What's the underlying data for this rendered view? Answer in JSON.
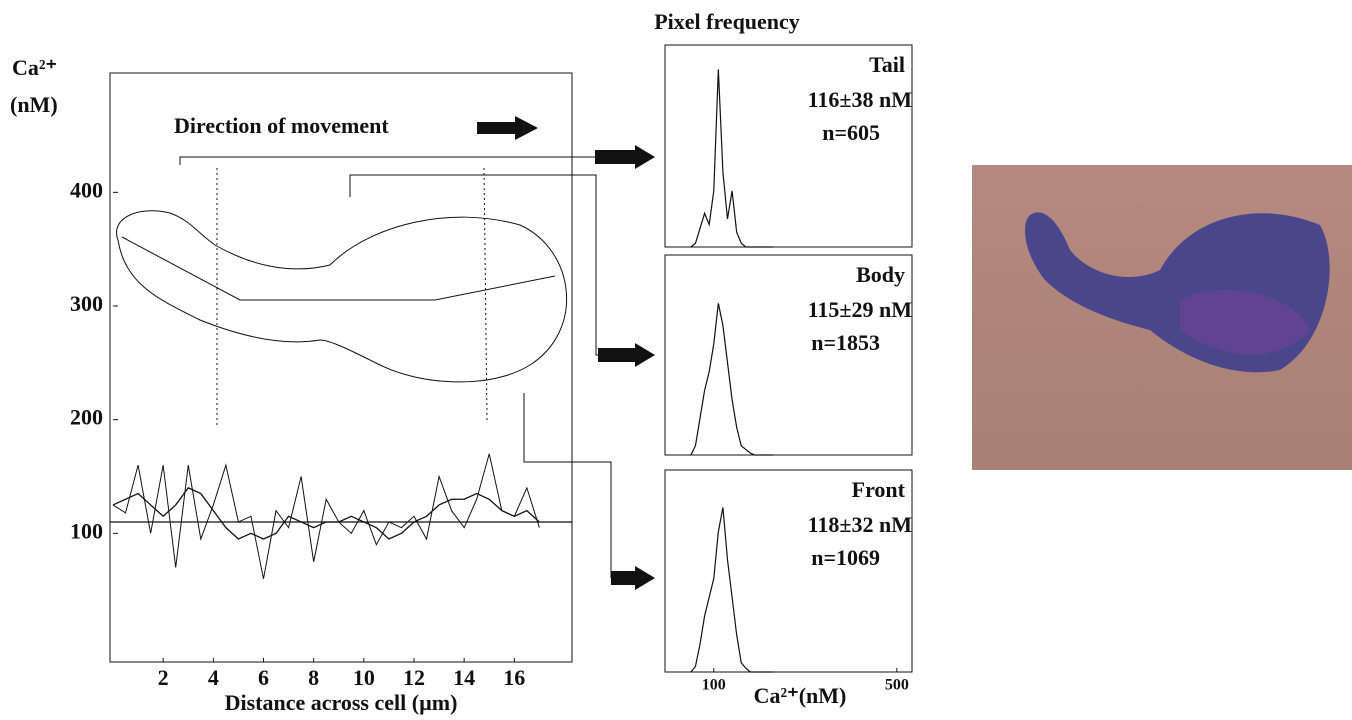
{
  "chart_data": [
    {
      "type": "line",
      "annotation": "Direction of movement",
      "y_label": "Ca²⁺",
      "y_unit": "(nM)",
      "x_label": "Distance across cell (µm)",
      "x": [
        0,
        0.5,
        1,
        1.5,
        2,
        2.5,
        3,
        3.5,
        4,
        4.5,
        5,
        5.5,
        6,
        6.5,
        7,
        7.5,
        8,
        8.5,
        9,
        9.5,
        10,
        10.5,
        11,
        11.5,
        12,
        12.5,
        13,
        13.5,
        14,
        14.5,
        15,
        15.5,
        16,
        16.5,
        17
      ],
      "series": [
        {
          "color": "#111111",
          "values": [
            125,
            118,
            160,
            100,
            160,
            70,
            160,
            95,
            125,
            160,
            110,
            115,
            60,
            120,
            105,
            150,
            75,
            130,
            110,
            100,
            120,
            90,
            110,
            105,
            115,
            95,
            150,
            120,
            105,
            130,
            170,
            120,
            115,
            140,
            105
          ]
        },
        {
          "color": "#111111",
          "values": [
            125,
            130,
            135,
            125,
            115,
            125,
            140,
            135,
            120,
            105,
            95,
            100,
            95,
            100,
            115,
            110,
            105,
            110,
            110,
            115,
            110,
            105,
            95,
            100,
            110,
            115,
            125,
            130,
            130,
            135,
            130,
            120,
            115,
            120,
            110
          ]
        }
      ],
      "hline": 110,
      "xlim": [
        0,
        18.3
      ],
      "xticks": [
        2,
        4,
        6,
        8,
        10,
        12,
        14,
        16
      ],
      "ylim": [
        0,
        505
      ],
      "yticks": [
        100,
        200,
        300,
        400
      ]
    },
    {
      "type": "line",
      "title": "Pixel frequency",
      "label": "Tail",
      "stat": "116±38 nM",
      "n": "n=605",
      "x": [
        50,
        60,
        70,
        80,
        90,
        100,
        110,
        120,
        130,
        140,
        150,
        160,
        170,
        180,
        190,
        200,
        210,
        220,
        230
      ],
      "values": [
        0,
        2,
        10,
        18,
        12,
        30,
        95,
        40,
        15,
        30,
        8,
        2,
        0,
        0,
        0,
        0,
        0,
        0,
        0
      ],
      "color": "#111111",
      "xlim": [
        0,
        555
      ],
      "ylim": [
        0,
        100
      ]
    },
    {
      "type": "line",
      "label": "Body",
      "stat": "115±29 nM",
      "n": "n=1853",
      "x": [
        50,
        60,
        70,
        80,
        90,
        100,
        110,
        120,
        130,
        140,
        150,
        160,
        170,
        180,
        190,
        200,
        210,
        220,
        230
      ],
      "values": [
        0,
        5,
        20,
        35,
        45,
        60,
        82,
        70,
        50,
        30,
        15,
        5,
        3,
        1,
        0,
        0,
        0,
        0,
        0
      ],
      "color": "#111111",
      "xlim": [
        0,
        555
      ],
      "ylim": [
        0,
        100
      ]
    },
    {
      "type": "line",
      "label": "Front",
      "stat": "118±32 nM",
      "n": "n=1069",
      "x": [
        50,
        60,
        70,
        80,
        90,
        100,
        110,
        120,
        130,
        140,
        150,
        160,
        170,
        180,
        190,
        200,
        210,
        220,
        230
      ],
      "values": [
        0,
        3,
        15,
        30,
        40,
        50,
        75,
        88,
        60,
        40,
        20,
        5,
        2,
        0,
        0,
        0,
        0,
        0,
        0
      ],
      "color": "#111111",
      "xlim": [
        0,
        555
      ],
      "ylim": [
        0,
        100
      ],
      "xticks": [
        100,
        500
      ],
      "x_label": "Ca²⁺(nM)"
    }
  ]
}
